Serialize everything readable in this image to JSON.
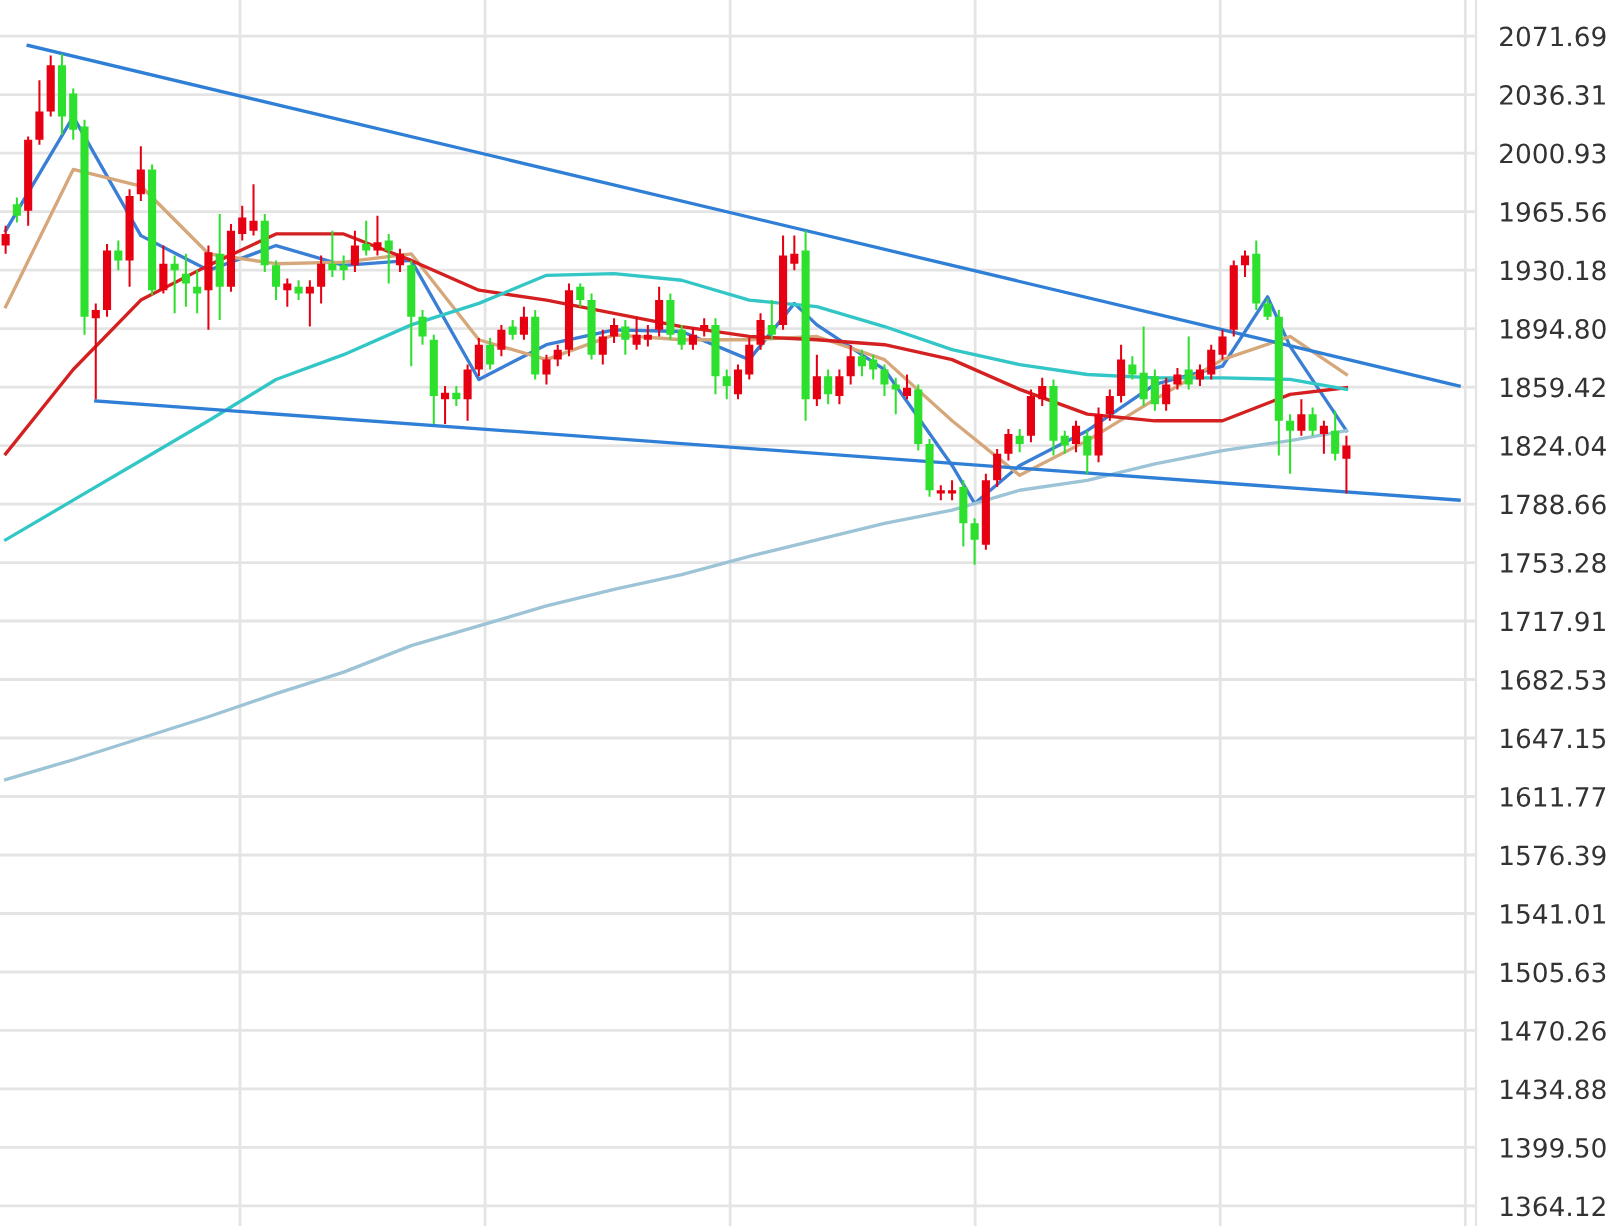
{
  "chart_data": {
    "type": "candlestick",
    "categories": [
      null,
      null,
      null,
      null,
      null,
      null,
      null,
      null,
      null,
      null,
      null,
      null,
      null,
      null,
      null,
      null,
      null,
      null,
      null,
      null,
      null,
      null,
      null,
      null,
      null,
      null,
      null,
      null,
      null,
      null,
      null,
      null,
      null,
      null,
      null,
      null,
      null,
      null,
      null,
      null,
      null,
      null,
      null,
      null,
      null,
      null,
      null,
      null,
      null,
      null,
      null,
      null,
      null,
      null,
      null,
      null,
      null,
      null,
      null,
      null,
      null,
      null,
      null,
      null,
      null,
      null,
      null,
      null,
      null,
      null,
      null,
      null,
      null,
      null,
      null,
      null,
      null,
      null,
      null,
      null,
      null,
      null,
      null,
      null,
      null,
      null,
      null,
      null,
      null,
      null,
      null,
      null,
      null,
      null,
      null,
      null,
      null,
      null,
      null,
      null,
      null,
      null,
      null,
      null,
      null,
      null,
      null,
      null,
      null,
      null,
      null,
      null,
      null,
      null,
      null,
      null,
      null,
      null,
      null,
      null,
      null,
      null,
      null,
      null,
      null,
      null,
      null,
      null,
      null,
      null,
      null
    ],
    "ohlc": [
      [
        1945,
        1957,
        1940,
        1952
      ],
      [
        1970,
        1974,
        1959,
        1963
      ],
      [
        1966,
        2011,
        1957,
        2009
      ],
      [
        2009,
        2045,
        2006,
        2026
      ],
      [
        2026,
        2060,
        2023,
        2054
      ],
      [
        2054,
        2061,
        2012,
        2023
      ],
      [
        2037,
        2040,
        2009,
        2015
      ],
      [
        2017,
        2021,
        1891,
        1902
      ],
      [
        1901,
        1910,
        1852,
        1906
      ],
      [
        1906,
        1946,
        1902,
        1942
      ],
      [
        1942,
        1948,
        1930,
        1936
      ],
      [
        1936,
        1979,
        1920,
        1975
      ],
      [
        1976,
        2005,
        1972,
        1991
      ],
      [
        1991,
        1994,
        1915,
        1918
      ],
      [
        1918,
        1945,
        1916,
        1934
      ],
      [
        1934,
        1939,
        1904,
        1930
      ],
      [
        1928,
        1940,
        1908,
        1922
      ],
      [
        1920,
        1930,
        1904,
        1916
      ],
      [
        1918,
        1945,
        1894,
        1941
      ],
      [
        1940,
        1964,
        1900,
        1920
      ],
      [
        1920,
        1958,
        1917,
        1954
      ],
      [
        1952,
        1969,
        1948,
        1962
      ],
      [
        1954,
        1982,
        1951,
        1960
      ],
      [
        1960,
        1964,
        1929,
        1933
      ],
      [
        1933,
        1936,
        1912,
        1920
      ],
      [
        1918,
        1925,
        1908,
        1922
      ],
      [
        1920,
        1924,
        1912,
        1916
      ],
      [
        1916,
        1924,
        1896,
        1920
      ],
      [
        1920,
        1939,
        1910,
        1934
      ],
      [
        1934,
        1954,
        1926,
        1930
      ],
      [
        1933,
        1939,
        1924,
        1930
      ],
      [
        1933,
        1954,
        1929,
        1945
      ],
      [
        1946,
        1960,
        1939,
        1942
      ],
      [
        1942,
        1963,
        1939,
        1947
      ],
      [
        1948,
        1952,
        1922,
        1942
      ],
      [
        1933,
        1943,
        1929,
        1940
      ],
      [
        1933,
        1936,
        1872,
        1902
      ],
      [
        1902,
        1906,
        1885,
        1890
      ],
      [
        1888,
        1891,
        1837,
        1854
      ],
      [
        1852,
        1860,
        1837,
        1856
      ],
      [
        1856,
        1860,
        1848,
        1852
      ],
      [
        1852,
        1873,
        1839,
        1870
      ],
      [
        1870,
        1889,
        1866,
        1885
      ],
      [
        1885,
        1889,
        1870,
        1873
      ],
      [
        1882,
        1897,
        1878,
        1894
      ],
      [
        1896,
        1900,
        1888,
        1891
      ],
      [
        1891,
        1908,
        1888,
        1902
      ],
      [
        1902,
        1906,
        1864,
        1867
      ],
      [
        1867,
        1879,
        1861,
        1876
      ],
      [
        1876,
        1885,
        1872,
        1882
      ],
      [
        1882,
        1922,
        1878,
        1918
      ],
      [
        1920,
        1922,
        1908,
        1912
      ],
      [
        1912,
        1916,
        1876,
        1879
      ],
      [
        1879,
        1894,
        1873,
        1890
      ],
      [
        1890,
        1901,
        1886,
        1897
      ],
      [
        1896,
        1900,
        1879,
        1888
      ],
      [
        1885,
        1902,
        1882,
        1891
      ],
      [
        1888,
        1897,
        1884,
        1891
      ],
      [
        1894,
        1920,
        1890,
        1912
      ],
      [
        1912,
        1916,
        1888,
        1891
      ],
      [
        1894,
        1897,
        1882,
        1885
      ],
      [
        1885,
        1895,
        1882,
        1891
      ],
      [
        1894,
        1901,
        1890,
        1897
      ],
      [
        1897,
        1901,
        1855,
        1866
      ],
      [
        1866,
        1870,
        1852,
        1860
      ],
      [
        1855,
        1873,
        1852,
        1870
      ],
      [
        1867,
        1889,
        1864,
        1885
      ],
      [
        1885,
        1904,
        1882,
        1900
      ],
      [
        1897,
        1912,
        1888,
        1891
      ],
      [
        1897,
        1951,
        1894,
        1939
      ],
      [
        1934,
        1951,
        1930,
        1940
      ],
      [
        1942,
        1954,
        1839,
        1852
      ],
      [
        1852,
        1879,
        1848,
        1866
      ],
      [
        1866,
        1870,
        1849,
        1855
      ],
      [
        1854,
        1870,
        1849,
        1866
      ],
      [
        1866,
        1885,
        1861,
        1878
      ],
      [
        1878,
        1882,
        1866,
        1872
      ],
      [
        1876,
        1879,
        1864,
        1870
      ],
      [
        1870,
        1873,
        1854,
        1861
      ],
      [
        1861,
        1865,
        1843,
        1858
      ],
      [
        1854,
        1867,
        1852,
        1859
      ],
      [
        1858,
        1861,
        1821,
        1825
      ],
      [
        1825,
        1828,
        1793,
        1797
      ],
      [
        1795,
        1800,
        1791,
        1797
      ],
      [
        1795,
        1803,
        1791,
        1797
      ],
      [
        1799,
        1803,
        1763,
        1777
      ],
      [
        1777,
        1780,
        1752,
        1767
      ],
      [
        1764,
        1807,
        1761,
        1803
      ],
      [
        1803,
        1822,
        1799,
        1819
      ],
      [
        1819,
        1834,
        1815,
        1831
      ],
      [
        1830,
        1834,
        1820,
        1825
      ],
      [
        1830,
        1858,
        1826,
        1854
      ],
      [
        1852,
        1865,
        1848,
        1860
      ],
      [
        1860,
        1864,
        1818,
        1827
      ],
      [
        1830,
        1833,
        1819,
        1824
      ],
      [
        1825,
        1839,
        1820,
        1836
      ],
      [
        1830,
        1833,
        1807,
        1818
      ],
      [
        1818,
        1847,
        1814,
        1843
      ],
      [
        1843,
        1858,
        1839,
        1854
      ],
      [
        1854,
        1885,
        1850,
        1876
      ],
      [
        1873,
        1878,
        1864,
        1867
      ],
      [
        1868,
        1896,
        1848,
        1852
      ],
      [
        1866,
        1870,
        1845,
        1849
      ],
      [
        1849,
        1865,
        1845,
        1861
      ],
      [
        1861,
        1871,
        1858,
        1867
      ],
      [
        1870,
        1890,
        1858,
        1861
      ],
      [
        1864,
        1873,
        1860,
        1870
      ],
      [
        1867,
        1885,
        1864,
        1882
      ],
      [
        1879,
        1894,
        1876,
        1890
      ],
      [
        1894,
        1936,
        1890,
        1933
      ],
      [
        1933,
        1942,
        1926,
        1939
      ],
      [
        1940,
        1948,
        1906,
        1910
      ],
      [
        1910,
        1913,
        1900,
        1902
      ],
      [
        1902,
        1906,
        1818,
        1839
      ],
      [
        1839,
        1843,
        1807,
        1833
      ],
      [
        1833,
        1852,
        1830,
        1843
      ],
      [
        1843,
        1847,
        1830,
        1833
      ],
      [
        1831,
        1839,
        1819,
        1836
      ],
      [
        1833,
        1845,
        1815,
        1819
      ],
      [
        1816,
        1830,
        1795,
        1824
      ],
      null,
      null,
      null,
      null,
      null,
      null,
      null,
      null,
      null,
      null,
      null
    ],
    "colors": [
      "#e60012",
      "#2ee02e",
      "#e60012",
      "#e60012",
      "#e60012",
      "#2ee02e",
      "#2ee02e",
      "#2ee02e",
      "#e60012",
      "#e60012",
      "#2ee02e",
      "#e60012",
      "#e60012",
      "#2ee02e",
      "#e60012",
      "#2ee02e",
      "#2ee02e",
      "#2ee02e",
      "#e60012",
      "#2ee02e",
      "#e60012",
      "#e60012",
      "#e60012",
      "#2ee02e",
      "#2ee02e",
      "#e60012",
      "#2ee02e",
      "#e60012",
      "#e60012",
      "#2ee02e",
      "#2ee02e",
      "#e60012",
      "#2ee02e",
      "#e60012",
      "#2ee02e",
      "#e60012",
      "#2ee02e",
      "#2ee02e",
      "#2ee02e",
      "#e60012",
      "#2ee02e",
      "#e60012",
      "#e60012",
      "#2ee02e",
      "#e60012",
      "#2ee02e",
      "#e60012",
      "#2ee02e",
      "#e60012",
      "#e60012",
      "#e60012",
      "#2ee02e",
      "#2ee02e",
      "#e60012",
      "#e60012",
      "#2ee02e",
      "#e60012",
      "#e60012",
      "#e60012",
      "#2ee02e",
      "#2ee02e",
      "#e60012",
      "#e60012",
      "#2ee02e",
      "#2ee02e",
      "#e60012",
      "#e60012",
      "#e60012",
      "#2ee02e",
      "#e60012",
      "#e60012",
      "#2ee02e",
      "#e60012",
      "#2ee02e",
      "#e60012",
      "#e60012",
      "#2ee02e",
      "#2ee02e",
      "#2ee02e",
      "#2ee02e",
      "#e60012",
      "#2ee02e",
      "#2ee02e",
      "#e60012",
      "#e60012",
      "#2ee02e",
      "#2ee02e",
      "#e60012",
      "#e60012",
      "#e60012",
      "#2ee02e",
      "#e60012",
      "#e60012",
      "#2ee02e",
      "#2ee02e",
      "#e60012",
      "#2ee02e",
      "#e60012",
      "#e60012",
      "#e60012",
      "#2ee02e",
      "#2ee02e",
      "#2ee02e",
      "#e60012",
      "#e60012",
      "#2ee02e",
      "#e60012",
      "#e60012",
      "#e60012",
      "#e60012",
      "#e60012",
      "#2ee02e",
      "#2ee02e",
      "#2ee02e",
      "#2ee02e",
      "#e60012",
      "#2ee02e",
      "#e60012",
      "#2ee02e",
      "#e60012",
      null,
      null,
      null,
      null,
      null,
      null,
      null,
      null,
      null,
      null,
      null
    ],
    "series": [
      {
        "type": "line",
        "color": "#3a7fd5",
        "values": [
          1954,
          null,
          null,
          null,
          null,
          null,
          2023,
          null,
          null,
          null,
          null,
          null,
          1951,
          null,
          null,
          null,
          null,
          null,
          1930,
          null,
          null,
          null,
          null,
          null,
          1945,
          null,
          null,
          null,
          null,
          null,
          1933,
          null,
          null,
          null,
          null,
          null,
          1936,
          null,
          null,
          null,
          null,
          null,
          1864,
          null,
          null,
          null,
          null,
          null,
          1885,
          null,
          null,
          null,
          null,
          null,
          1894,
          null,
          null,
          null,
          null,
          null,
          1893,
          null,
          null,
          null,
          null,
          null,
          1876,
          null,
          null,
          null,
          1910,
          null,
          1897,
          null,
          null,
          null,
          null,
          null,
          1870,
          null,
          null,
          null,
          null,
          null,
          1812,
          null,
          1789,
          null,
          null,
          null,
          1812,
          null,
          null,
          null,
          null,
          null,
          1833,
          null,
          null,
          null,
          null,
          null,
          1861,
          null,
          null,
          null,
          null,
          null,
          1872,
          null,
          null,
          null,
          1914,
          null,
          1884,
          null,
          null,
          null,
          null,
          1833,
          null,
          null,
          null,
          null,
          null,
          null,
          null,
          null,
          null,
          null,
          null
        ]
      },
      {
        "type": "line",
        "color": "#d6a77a",
        "values": [
          1908,
          null,
          null,
          null,
          null,
          null,
          1991,
          null,
          null,
          null,
          null,
          null,
          1981,
          null,
          null,
          null,
          null,
          null,
          1940,
          null,
          null,
          null,
          null,
          null,
          1934,
          null,
          null,
          null,
          null,
          null,
          1935,
          null,
          null,
          null,
          null,
          null,
          1940,
          null,
          null,
          null,
          null,
          null,
          1888,
          null,
          null,
          null,
          null,
          null,
          1876,
          null,
          null,
          null,
          null,
          null,
          1891,
          null,
          null,
          null,
          null,
          null,
          1888,
          null,
          null,
          null,
          null,
          null,
          1888,
          null,
          null,
          null,
          null,
          null,
          1890,
          null,
          null,
          null,
          null,
          null,
          1876,
          null,
          null,
          null,
          null,
          null,
          1839,
          null,
          null,
          null,
          null,
          null,
          1806,
          null,
          null,
          null,
          null,
          null,
          1827,
          null,
          null,
          null,
          null,
          null,
          1852,
          null,
          null,
          null,
          null,
          null,
          1876,
          null,
          null,
          null,
          null,
          null,
          1890,
          null,
          null,
          null,
          null,
          1867,
          null,
          null,
          null,
          null,
          null,
          null,
          null,
          null,
          null,
          null,
          null
        ]
      },
      {
        "type": "line",
        "color": "#d42020",
        "values": [
          1819,
          null,
          null,
          null,
          null,
          null,
          1870,
          null,
          null,
          null,
          null,
          null,
          1912,
          null,
          null,
          null,
          null,
          null,
          1933,
          null,
          null,
          null,
          null,
          null,
          1952,
          null,
          null,
          null,
          null,
          null,
          1952,
          null,
          null,
          null,
          null,
          null,
          1936,
          null,
          null,
          null,
          null,
          null,
          1918,
          null,
          null,
          null,
          null,
          null,
          1912,
          null,
          null,
          null,
          null,
          null,
          1904,
          null,
          null,
          null,
          null,
          null,
          1896,
          null,
          null,
          null,
          null,
          null,
          1890,
          null,
          null,
          null,
          null,
          null,
          1888,
          null,
          null,
          null,
          null,
          null,
          1885,
          null,
          null,
          null,
          null,
          null,
          1876,
          null,
          null,
          null,
          null,
          null,
          1858,
          null,
          null,
          null,
          null,
          null,
          1843,
          null,
          null,
          null,
          null,
          null,
          1839,
          null,
          null,
          null,
          null,
          null,
          1839,
          null,
          null,
          null,
          null,
          null,
          1855,
          null,
          null,
          null,
          null,
          1859,
          null,
          null,
          null,
          null,
          null,
          null,
          null,
          null,
          null,
          null,
          null
        ]
      },
      {
        "type": "line",
        "color": "#33c6c6",
        "values": [
          1767,
          null,
          null,
          null,
          null,
          null,
          1791,
          null,
          null,
          null,
          null,
          null,
          1815,
          null,
          null,
          null,
          null,
          null,
          1839,
          null,
          null,
          null,
          null,
          null,
          1864,
          null,
          null,
          null,
          null,
          null,
          1879,
          null,
          null,
          null,
          null,
          null,
          1897,
          null,
          null,
          null,
          null,
          null,
          1910,
          null,
          null,
          null,
          null,
          null,
          1927,
          null,
          null,
          null,
          null,
          null,
          1928,
          null,
          null,
          null,
          null,
          null,
          1924,
          null,
          null,
          null,
          null,
          null,
          1912,
          null,
          null,
          null,
          null,
          null,
          1908,
          null,
          null,
          null,
          null,
          null,
          1896,
          null,
          null,
          null,
          null,
          null,
          1882,
          null,
          null,
          null,
          null,
          null,
          1873,
          null,
          null,
          null,
          null,
          null,
          1867,
          null,
          null,
          null,
          null,
          null,
          1865,
          null,
          null,
          null,
          null,
          null,
          1865,
          null,
          null,
          null,
          null,
          null,
          1864,
          null,
          null,
          null,
          null,
          1858,
          null,
          null,
          null,
          null,
          null,
          null,
          null,
          null,
          null,
          null,
          null
        ]
      },
      {
        "type": "line",
        "color": "#9cc3d6",
        "values": [
          1622,
          null,
          null,
          null,
          null,
          null,
          1634,
          null,
          null,
          null,
          null,
          null,
          1647,
          null,
          null,
          null,
          null,
          null,
          1660,
          null,
          null,
          null,
          null,
          null,
          1674,
          null,
          null,
          null,
          null,
          null,
          1687,
          null,
          null,
          null,
          null,
          null,
          1703,
          null,
          null,
          null,
          null,
          null,
          1715,
          null,
          null,
          null,
          null,
          null,
          1727,
          null,
          null,
          null,
          null,
          null,
          1737,
          null,
          null,
          null,
          null,
          null,
          1746,
          null,
          null,
          null,
          null,
          null,
          1757,
          null,
          null,
          null,
          null,
          null,
          1767,
          null,
          null,
          null,
          null,
          null,
          1777,
          null,
          null,
          null,
          null,
          null,
          1785,
          null,
          null,
          null,
          null,
          null,
          1797,
          null,
          null,
          null,
          null,
          null,
          1803,
          null,
          null,
          null,
          null,
          null,
          1813,
          null,
          null,
          null,
          null,
          null,
          1821,
          null,
          null,
          null,
          null,
          null,
          1827,
          null,
          null,
          null,
          null,
          1833,
          null,
          null,
          null,
          null,
          null,
          null,
          null,
          null,
          null,
          null,
          null
        ]
      },
      {
        "type": "line",
        "color": "#2f7fd6",
        "values": [
          null,
          null,
          2066,
          null,
          null,
          null,
          null,
          null,
          null,
          null,
          null,
          null,
          null,
          null,
          null,
          null,
          null,
          null,
          null,
          null,
          null,
          null,
          null,
          null,
          null,
          null,
          null,
          null,
          null,
          null,
          null,
          null,
          null,
          null,
          null,
          null,
          null,
          null,
          null,
          null,
          null,
          null,
          null,
          null,
          null,
          null,
          null,
          null,
          null,
          null,
          null,
          null,
          null,
          null,
          null,
          null,
          null,
          null,
          null,
          null,
          null,
          null,
          null,
          null,
          null,
          null,
          null,
          null,
          null,
          null,
          null,
          null,
          null,
          null,
          null,
          null,
          null,
          null,
          null,
          null,
          null,
          null,
          null,
          null,
          null,
          null,
          null,
          null,
          null,
          null,
          null,
          null,
          null,
          null,
          null,
          null,
          null,
          null,
          null,
          null,
          null,
          null,
          null,
          null,
          null,
          null,
          null,
          null,
          null,
          null,
          null,
          null,
          null,
          null,
          null,
          null,
          null,
          null,
          null,
          null,
          null,
          null,
          null,
          null,
          null,
          null,
          null,
          null,
          null,
          1860,
          null
        ]
      },
      {
        "type": "line",
        "color": "#2f7fd6",
        "values": [
          null,
          null,
          null,
          null,
          null,
          null,
          null,
          null,
          1851,
          null,
          null,
          null,
          null,
          null,
          null,
          null,
          null,
          null,
          null,
          null,
          null,
          null,
          null,
          null,
          null,
          null,
          null,
          null,
          null,
          null,
          null,
          null,
          null,
          null,
          null,
          null,
          null,
          null,
          null,
          null,
          null,
          null,
          null,
          null,
          null,
          null,
          null,
          null,
          null,
          null,
          null,
          null,
          null,
          null,
          null,
          null,
          null,
          null,
          null,
          null,
          null,
          null,
          null,
          null,
          null,
          null,
          null,
          null,
          null,
          null,
          null,
          null,
          null,
          null,
          null,
          null,
          null,
          null,
          null,
          null,
          null,
          null,
          null,
          null,
          null,
          null,
          null,
          null,
          null,
          null,
          null,
          null,
          null,
          null,
          null,
          null,
          null,
          null,
          null,
          null,
          null,
          null,
          null,
          null,
          null,
          null,
          null,
          null,
          null,
          null,
          null,
          null,
          null,
          null,
          null,
          null,
          null,
          null,
          null,
          null,
          null,
          null,
          null,
          null,
          null,
          null,
          null,
          null,
          null,
          1791,
          null
        ]
      }
    ],
    "ylim": [
      1352,
      2093.5
    ],
    "yticks": [
      2071.69,
      2036.31,
      2000.93,
      1965.56,
      1930.18,
      {
        "value": 1894.8,
        "label": "1894.80"
      },
      1859.42,
      1824.04,
      1788.66,
      1753.28,
      1717.91,
      1682.53,
      1647.15,
      1611.77,
      1576.39,
      1541.01,
      1505.63,
      1470.26,
      1434.88,
      {
        "value": 1399.5,
        "label": "1399.50"
      },
      1364.12
    ],
    "grid": "y",
    "tick_labels": "y",
    "legend": false
  }
}
